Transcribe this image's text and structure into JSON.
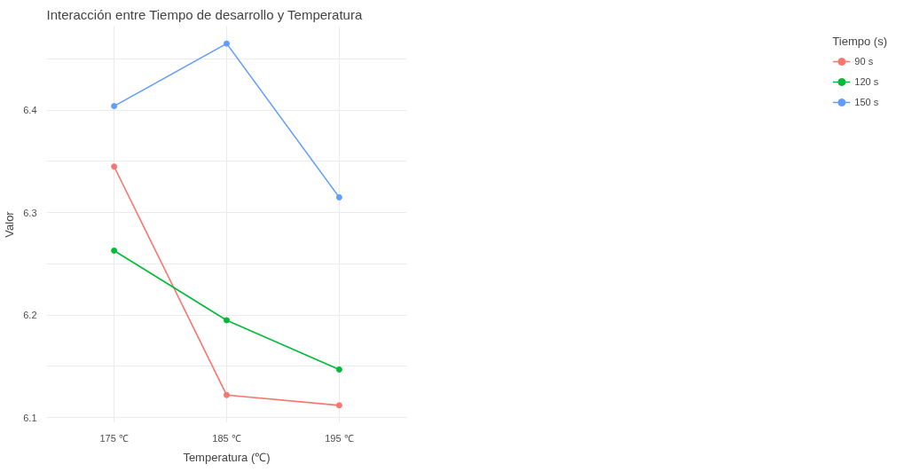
{
  "chart_data": {
    "type": "line",
    "title": "Interacción entre Tiempo de desarrollo y Temperatura",
    "xlabel": "Temperatura (℃)",
    "ylabel": "Valor",
    "legend_title": "Tiempo (s)",
    "categories": [
      "175 ℃",
      "185 ℃",
      "195 ℃"
    ],
    "series": [
      {
        "name": "90 s",
        "color": "#f8766d",
        "values": [
          6.345,
          6.122,
          6.112
        ]
      },
      {
        "name": "120 s",
        "color": "#00ba38",
        "values": [
          6.263,
          6.195,
          6.147
        ]
      },
      {
        "name": "150 s",
        "color": "#619cff",
        "values": [
          6.404,
          6.465,
          6.315
        ]
      }
    ],
    "ylim": [
      6.095,
      6.482
    ],
    "yticks": [
      6.1,
      {
        "value": 6.15,
        "label": null
      },
      6.2,
      {
        "value": 6.25,
        "label": null
      },
      6.3,
      {
        "value": 6.35,
        "label": null
      },
      6.4,
      {
        "value": 6.45,
        "label": null
      }
    ],
    "grid": true,
    "legend": "right",
    "marker": "circle",
    "line_style": "solid"
  }
}
